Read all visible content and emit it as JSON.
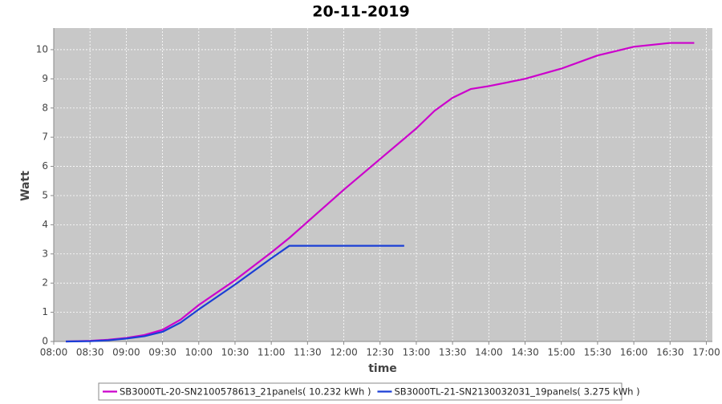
{
  "chart_data": {
    "type": "line",
    "title": "20-11-2019",
    "x_label": "time",
    "y_label": "Watt",
    "x": [
      "08:10",
      "08:30",
      "08:45",
      "09:00",
      "09:15",
      "09:30",
      "09:45",
      "10:00",
      "10:30",
      "11:00",
      "11:15",
      "11:30",
      "12:00",
      "12:30",
      "12:50",
      "13:00",
      "13:15",
      "13:30",
      "13:45",
      "14:00",
      "14:30",
      "15:00",
      "15:30",
      "16:00",
      "16:30",
      "16:50"
    ],
    "series": [
      {
        "name": "SB3000TL-20-SN2100578613_21panels( 10.232 kWh )",
        "color": "#cc00cc",
        "values": [
          0,
          0.02,
          0.06,
          0.12,
          0.22,
          0.4,
          0.75,
          1.25,
          2.1,
          3.05,
          3.55,
          4.1,
          5.2,
          6.25,
          6.95,
          7.3,
          7.9,
          8.35,
          8.65,
          8.75,
          9.0,
          9.35,
          9.8,
          10.1,
          10.23,
          10.23
        ]
      },
      {
        "name": "SB3000TL-21-SN2130032031_19panels( 3.275 kWh )",
        "color": "#1a3fd6",
        "values": [
          0,
          0.01,
          0.04,
          0.1,
          0.18,
          0.33,
          0.65,
          1.1,
          1.95,
          2.85,
          3.28,
          3.28,
          3.28,
          3.28,
          3.28,
          null,
          null,
          null,
          null,
          null,
          null,
          null,
          null,
          null,
          null,
          null
        ]
      }
    ],
    "xlim": [
      "08:00",
      "17:05"
    ],
    "xticks": [
      "08:00",
      "08:30",
      "09:00",
      "09:30",
      "10:00",
      "10:30",
      "11:00",
      "11:30",
      "12:00",
      "12:30",
      "13:00",
      "13:30",
      "14:00",
      "14:30",
      "15:00",
      "15:30",
      "16:00",
      "16:30",
      "17:00"
    ],
    "ylim": [
      0,
      10.74
    ],
    "yticks": [
      0,
      1,
      2,
      3,
      4,
      5,
      6,
      7,
      8,
      9,
      10
    ],
    "grid": true,
    "legend": "bottom"
  }
}
